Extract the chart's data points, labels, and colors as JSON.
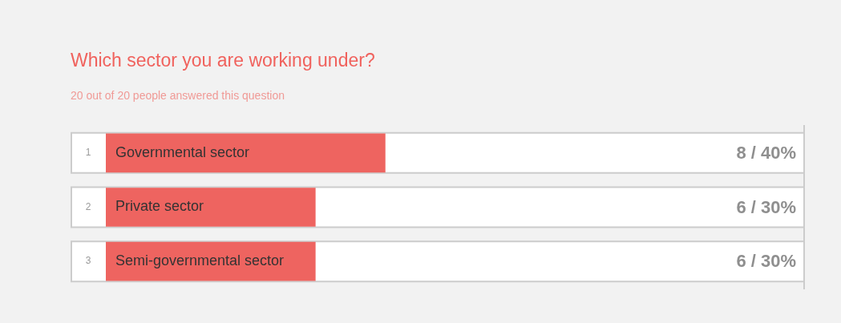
{
  "chart_data": {
    "type": "bar",
    "orientation": "horizontal",
    "title": "Which sector you are working under?",
    "subtitle": "20 out of 20 people answered this question",
    "categories": [
      "Governmental sector",
      "Private sector",
      "Semi-governmental sector"
    ],
    "values": [
      8,
      6,
      6
    ],
    "color": "#ee6460",
    "value_labels": [
      "8 / 40%",
      "6 / 30%",
      "6 / 30%"
    ],
    "xlim": [
      0,
      20
    ],
    "tick_labels": false,
    "legend": false,
    "annotations": [
      "1",
      "2",
      "3"
    ]
  }
}
